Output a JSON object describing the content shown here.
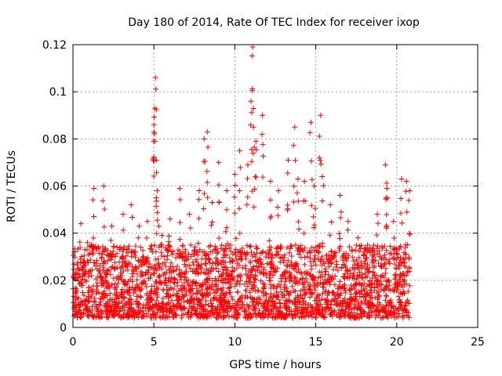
{
  "chart_data": {
    "type": "scatter",
    "title": "Day 180 of 2014, Rate Of TEC Index for receiver ixop",
    "xlabel": "GPS time / hours",
    "ylabel": "ROTI / TECUs",
    "xlim": [
      0,
      25
    ],
    "ylim": [
      0,
      0.12
    ],
    "x_ticks": [
      0,
      5,
      10,
      15,
      20,
      25
    ],
    "x_tick_labels": [
      "0",
      "5",
      "10",
      "15",
      "20",
      "25"
    ],
    "y_ticks": [
      0,
      0.02,
      0.04,
      0.06,
      0.08,
      0.1,
      0.12
    ],
    "y_tick_labels": [
      "0",
      "0.02",
      "0.04",
      "0.06",
      "0.08",
      "0.1",
      "0.12"
    ],
    "grid": true,
    "marker": "+",
    "color": "#ff0000",
    "series": [
      {
        "name": "ROTI",
        "x": [
          0.1,
          0.3,
          0.5,
          0.9,
          1.3,
          1.9,
          2.4,
          3.1,
          3.6,
          4.1,
          4.6,
          5.0,
          5.05,
          5.1,
          5.15,
          5.2,
          5.3,
          5.5,
          6.0,
          6.6,
          7.2,
          7.8,
          8.1,
          8.3,
          8.6,
          9.0,
          9.5,
          10.0,
          10.3,
          10.8,
          11.0,
          11.1,
          11.15,
          11.3,
          11.7,
          12.2,
          12.7,
          13.3,
          13.7,
          13.9,
          14.3,
          14.7,
          14.9,
          15.3,
          15.4,
          15.9,
          16.5,
          17.0,
          17.6,
          18.2,
          18.8,
          19.3,
          19.4,
          19.8,
          20.3,
          20.6,
          20.8
        ],
        "y": [
          0.032,
          0.025,
          0.044,
          0.036,
          0.059,
          0.06,
          0.043,
          0.048,
          0.052,
          0.043,
          0.045,
          0.086,
          0.093,
          0.106,
          0.071,
          0.058,
          0.043,
          0.039,
          0.046,
          0.059,
          0.048,
          0.058,
          0.08,
          0.083,
          0.053,
          0.07,
          0.058,
          0.065,
          0.075,
          0.069,
          0.096,
          0.119,
          0.085,
          0.079,
          0.09,
          0.062,
          0.058,
          0.071,
          0.085,
          0.063,
          0.062,
          0.087,
          0.06,
          0.09,
          0.064,
          0.052,
          0.056,
          0.045,
          0.038,
          0.035,
          0.048,
          0.069,
          0.059,
          0.045,
          0.063,
          0.062,
          0.058
        ]
      }
    ],
    "dense_band": {
      "x_range": [
        0,
        20.8
      ],
      "y_range": [
        0.004,
        0.035
      ]
    }
  }
}
